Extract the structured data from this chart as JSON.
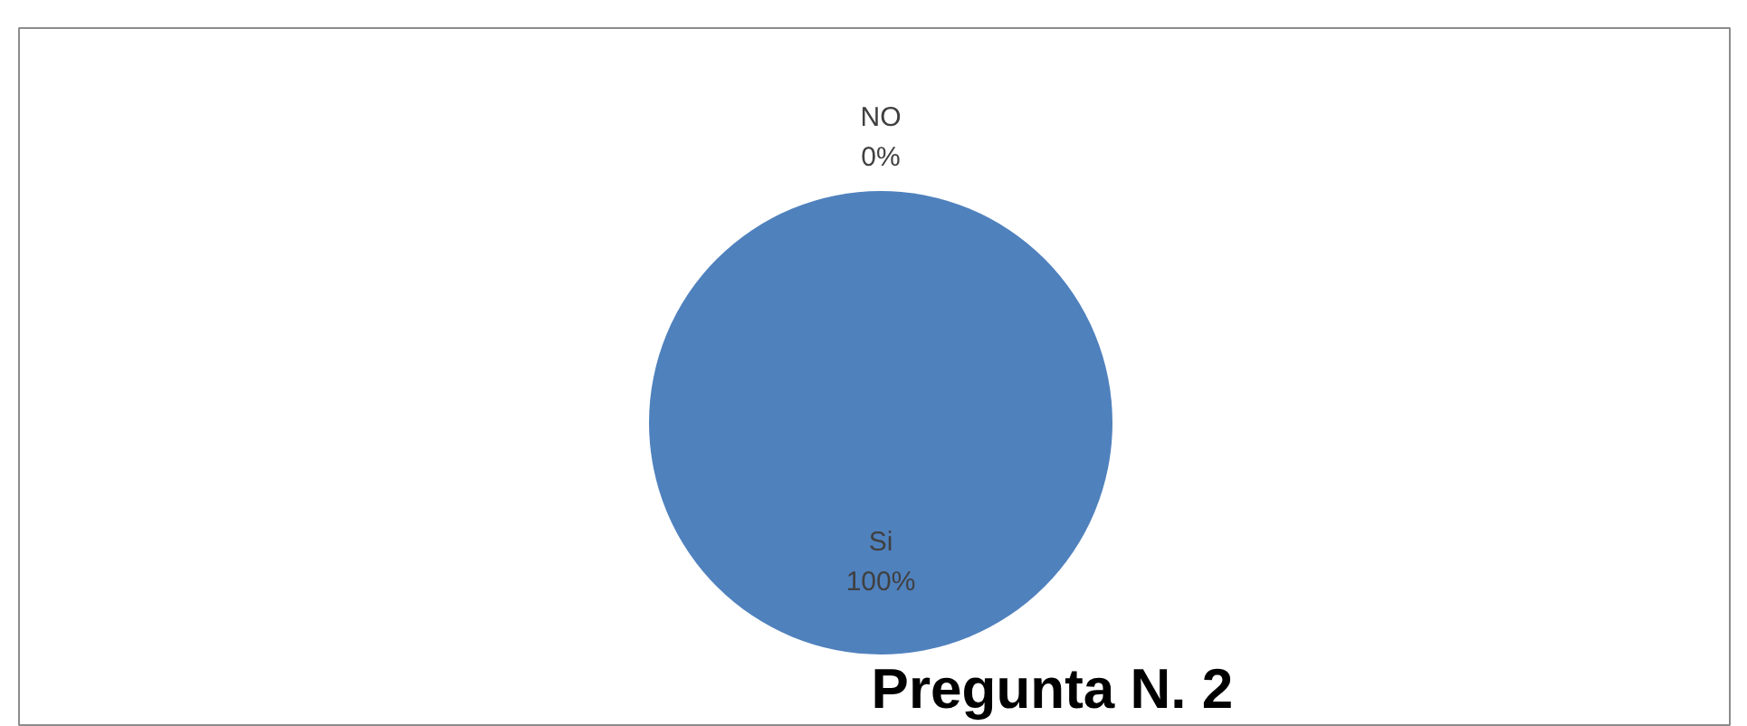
{
  "chart_data": {
    "type": "pie",
    "title": "Pregunta  N. 2",
    "categories": [
      "Si",
      "NO"
    ],
    "values": [
      100,
      0
    ],
    "value_labels": [
      "100%",
      "0%"
    ],
    "colors": [
      "#4f81bd",
      "#c0504d"
    ]
  }
}
